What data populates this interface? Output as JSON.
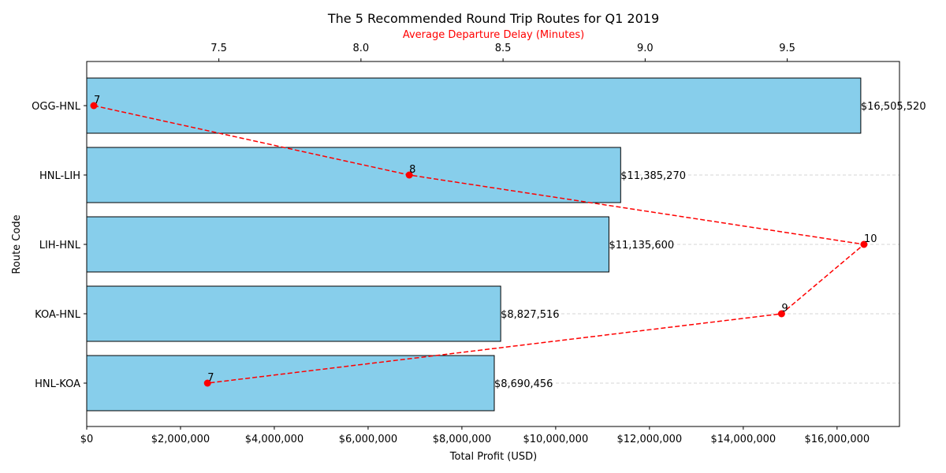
{
  "chart_data": {
    "type": "bar",
    "orientation": "horizontal",
    "title": "The 5 Recommended Round Trip Routes for Q1 2019",
    "xlabel": "Total Profit (USD)",
    "ylabel": "Route Code",
    "secondary_xlabel": "Average Departure Delay (Minutes)",
    "categories": [
      "OGG-HNL",
      "HNL-LIH",
      "LIH-HNL",
      "KOA-HNL",
      "HNL-KOA"
    ],
    "profit_values": [
      16505520,
      11385270,
      11135600,
      8827516,
      8690456
    ],
    "profit_labels": [
      "$16,505,520",
      "$11,385,270",
      "$11,135,600",
      "$8,827,516",
      "$8,690,456"
    ],
    "delay_values": [
      7.06,
      8.17,
      9.77,
      9.48,
      7.46
    ],
    "delay_labels": [
      "7",
      "8",
      "10",
      "9",
      "7"
    ],
    "xlim": [
      0,
      17331000
    ],
    "x_ticks": [
      0,
      2000000,
      4000000,
      6000000,
      8000000,
      10000000,
      12000000,
      14000000,
      16000000
    ],
    "x_tick_labels": [
      "$0",
      "$2,000,000",
      "$4,000,000",
      "$6,000,000",
      "$8,000,000",
      "$10,000,000",
      "$12,000,000",
      "$14,000,000",
      "$16,000,000"
    ],
    "secondary_xlim": [
      7.035,
      9.895
    ],
    "secondary_ticks": [
      7.5,
      8.0,
      8.5,
      9.0,
      9.5
    ],
    "secondary_tick_labels": [
      "7.5",
      "8.0",
      "8.5",
      "9.0",
      "9.5"
    ],
    "grid": "horizontal dashed",
    "colors": {
      "bar_fill": "#87CEEB",
      "bar_edge": "#000000",
      "delay_line": "#FF0000",
      "grid": "#c8c8c8",
      "secondary_label": "#FF0000"
    }
  }
}
